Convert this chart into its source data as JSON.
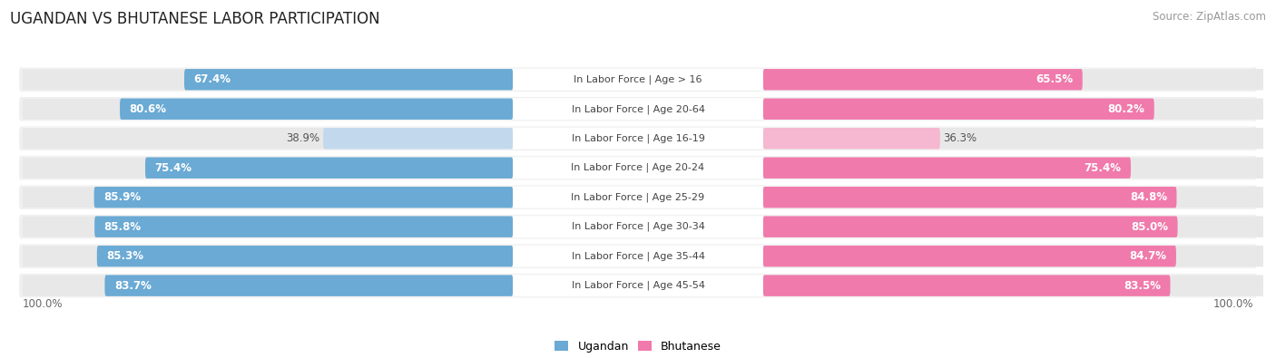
{
  "title": "UGANDAN VS BHUTANESE LABOR PARTICIPATION",
  "source": "Source: ZipAtlas.com",
  "categories": [
    "In Labor Force | Age > 16",
    "In Labor Force | Age 20-64",
    "In Labor Force | Age 16-19",
    "In Labor Force | Age 20-24",
    "In Labor Force | Age 25-29",
    "In Labor Force | Age 30-34",
    "In Labor Force | Age 35-44",
    "In Labor Force | Age 45-54"
  ],
  "ugandan_values": [
    67.4,
    80.6,
    38.9,
    75.4,
    85.9,
    85.8,
    85.3,
    83.7
  ],
  "bhutanese_values": [
    65.5,
    80.2,
    36.3,
    75.4,
    84.8,
    85.0,
    84.7,
    83.5
  ],
  "ugandan_color": "#6aaad4",
  "ugandan_color_light": "#c2d9ed",
  "bhutanese_color": "#f07aab",
  "bhutanese_color_light": "#f5b8d0",
  "row_bg_color": "#f0f0f0",
  "row_bg_inner": "#fafafa",
  "legend_ugandan": "Ugandan",
  "legend_bhutanese": "Bhutanese",
  "max_value": 100.0,
  "title_fontsize": 12,
  "source_fontsize": 8.5,
  "value_fontsize": 8.5,
  "category_fontsize": 8.0
}
